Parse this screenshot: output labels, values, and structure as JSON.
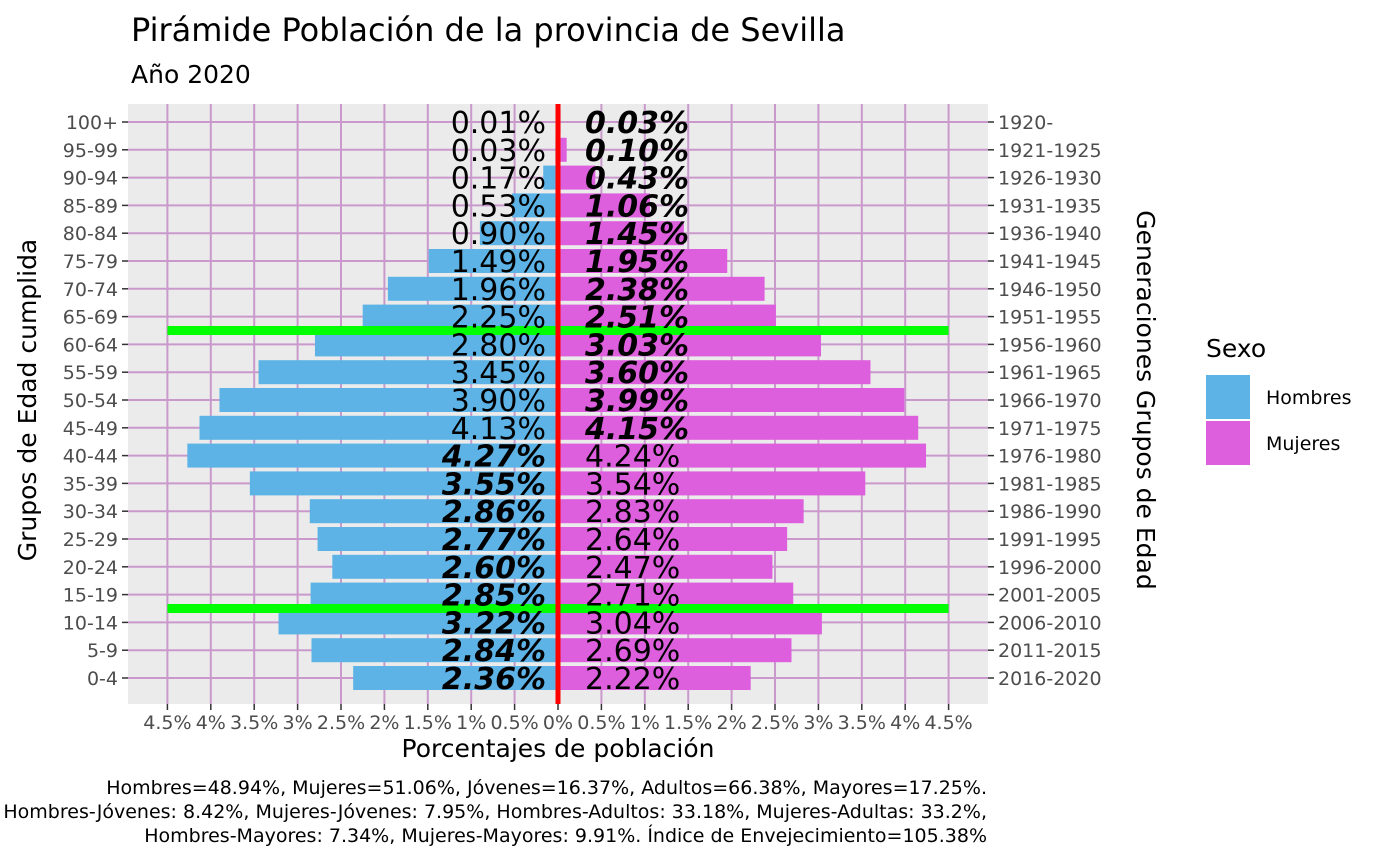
{
  "chart_data": {
    "type": "bar",
    "title": "Pirámide Población de la provincia de Sevilla",
    "subtitle": "Año 2020",
    "xlabel": "Porcentajes de población",
    "ylabel": "Grupos de Edad cumplida",
    "ylabel_secondary": "Generaciones Grupos de Edad",
    "xlim": [
      -4.5,
      4.5
    ],
    "x_ticks": [
      -4.5,
      -4,
      -3.5,
      -3,
      -2.5,
      -2,
      -1.5,
      -1,
      -0.5,
      0,
      0.5,
      1,
      1.5,
      2,
      2.5,
      3,
      3.5,
      4,
      4.5
    ],
    "x_tick_labels": [
      "4.5%",
      "4%",
      "3.5%",
      "3%",
      "2.5%",
      "2%",
      "1.5%",
      "1%",
      "0.5%",
      "0%",
      "0.5%",
      "1%",
      "1.5%",
      "2%",
      "2.5%",
      "3%",
      "3.5%",
      "4%",
      "4.5%"
    ],
    "categories": [
      "0-4",
      "5-9",
      "10-14",
      "15-19",
      "20-24",
      "25-29",
      "30-34",
      "35-39",
      "40-44",
      "45-49",
      "50-54",
      "55-59",
      "60-64",
      "65-69",
      "70-74",
      "75-79",
      "80-84",
      "85-89",
      "90-94",
      "95-99",
      "100+"
    ],
    "generations": [
      "2016-2020",
      "2011-2015",
      "2006-2010",
      "2001-2005",
      "1996-2000",
      "1991-1995",
      "1986-1990",
      "1981-1985",
      "1976-1980",
      "1971-1975",
      "1966-1970",
      "1961-1965",
      "1956-1960",
      "1951-1955",
      "1946-1950",
      "1941-1945",
      "1936-1940",
      "1931-1935",
      "1926-1930",
      "1921-1925",
      "1920-"
    ],
    "series": [
      {
        "name": "Hombres",
        "color": "#5DB3E6",
        "values": [
          2.36,
          2.84,
          3.22,
          2.85,
          2.6,
          2.77,
          2.86,
          3.55,
          4.27,
          4.13,
          3.9,
          3.45,
          2.8,
          2.25,
          1.96,
          1.49,
          0.9,
          0.53,
          0.17,
          0.03,
          0.01
        ],
        "labels": [
          "2.36%",
          "2.84%",
          "3.22%",
          "2.85%",
          "2.60%",
          "2.77%",
          "2.86%",
          "3.55%",
          "4.27%",
          "4.13%",
          "3.90%",
          "3.45%",
          "2.80%",
          "2.25%",
          "1.96%",
          "1.49%",
          "0.90%",
          "0.53%",
          "0.17%",
          "0.03%",
          "0.01%"
        ],
        "bold": [
          true,
          true,
          true,
          true,
          true,
          true,
          true,
          true,
          true,
          false,
          false,
          false,
          false,
          false,
          false,
          false,
          false,
          false,
          false,
          false,
          false
        ]
      },
      {
        "name": "Mujeres",
        "color": "#DD5FDD",
        "values": [
          2.22,
          2.69,
          3.04,
          2.71,
          2.47,
          2.64,
          2.83,
          3.54,
          4.24,
          4.15,
          3.99,
          3.6,
          3.03,
          2.51,
          2.38,
          1.95,
          1.45,
          1.06,
          0.43,
          0.1,
          0.03
        ],
        "labels": [
          "2.22%",
          "2.69%",
          "3.04%",
          "2.71%",
          "2.47%",
          "2.64%",
          "2.83%",
          "3.54%",
          "4.24%",
          "4.15%",
          "3.99%",
          "3.60%",
          "3.03%",
          "2.51%",
          "2.38%",
          "1.95%",
          "1.45%",
          "1.06%",
          "0.43%",
          "0.10%",
          "0.03%"
        ],
        "bold": [
          false,
          false,
          false,
          false,
          false,
          false,
          false,
          false,
          false,
          true,
          true,
          true,
          true,
          true,
          true,
          true,
          true,
          true,
          true,
          true,
          true
        ]
      }
    ],
    "reference_lines": {
      "center_color": "#FF0000",
      "group_line_color": "#00FF00",
      "group_boundaries": [
        "10-14 / 15-19",
        "60-64 / 65-69"
      ]
    },
    "legend": {
      "title": "Sexo",
      "position": "right",
      "items": [
        {
          "label": "Hombres",
          "color": "#5DB3E6"
        },
        {
          "label": "Mujeres",
          "color": "#DD5FDD"
        }
      ]
    },
    "grid": true,
    "grid_color": "#C999CC",
    "panel_background": "#EBEBEB",
    "caption": [
      "Hombres=48.94%, Mujeres=51.06%, Jóvenes=16.37%, Adultos=66.38%, Mayores=17.25%.",
      "Hombres-Jóvenes: 8.42%, Mujeres-Jóvenes: 7.95%, Hombres-Adultos: 33.18%, Mujeres-Adultas: 33.2%,",
      "Hombres-Mayores: 7.34%, Mujeres-Mayores: 9.91%. Índice de Envejecimiento=105.38%"
    ]
  }
}
